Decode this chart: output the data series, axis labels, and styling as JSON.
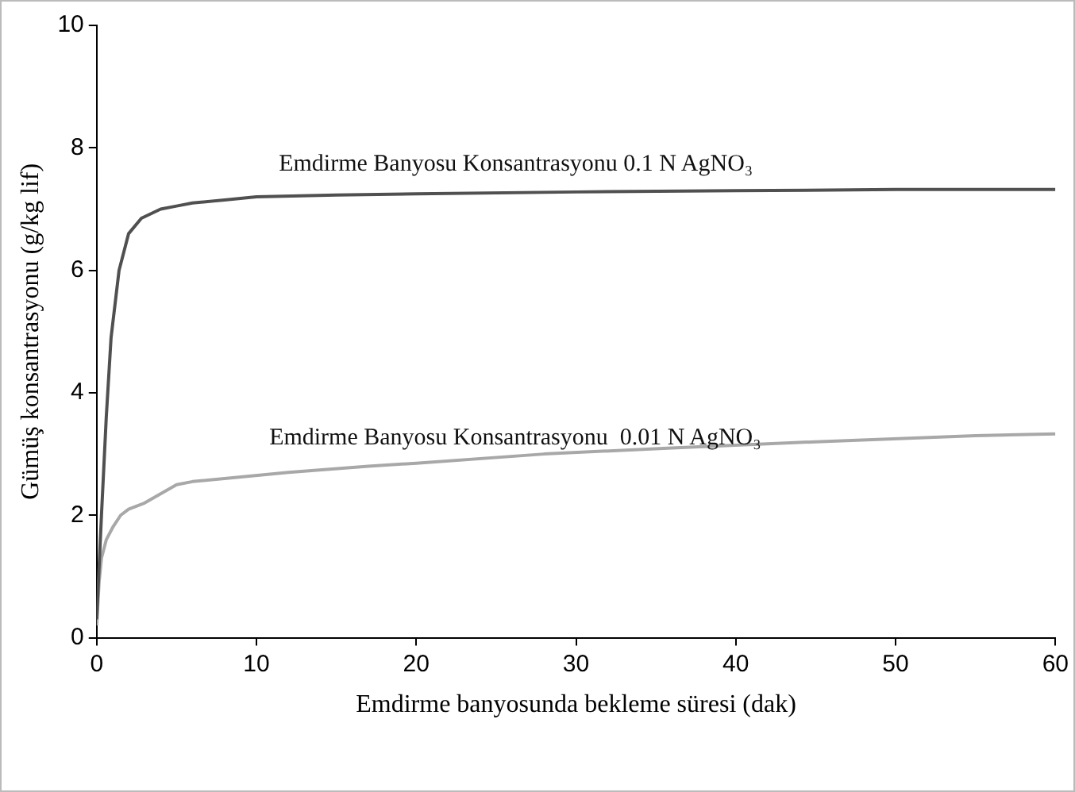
{
  "chart_data": {
    "type": "line",
    "xlabel": "Emdirme banyosunda bekleme süresi (dak)",
    "ylabel": "Gümüş konsantrasyonu (g/kg lif)",
    "xlim": [
      0,
      60
    ],
    "xticks": [
      0,
      10,
      20,
      30,
      40,
      50,
      60
    ],
    "ylim": [
      0,
      10
    ],
    "yticks": [
      0,
      2,
      4,
      6,
      8,
      10
    ],
    "grid": false,
    "legend": false,
    "marker": "none",
    "line_style": "solid",
    "series": [
      {
        "name": "Emdirme Banyosu Konsantrasyonu 0.1 N AgNO₃",
        "color": "#505050",
        "x": [
          0,
          0.3,
          0.6,
          0.9,
          1.4,
          2,
          2.8,
          4,
          5,
          6,
          8,
          10,
          15,
          20,
          30,
          40,
          50,
          60
        ],
        "values": [
          0.3,
          2,
          3.6,
          4.9,
          6,
          6.6,
          6.85,
          7,
          7.05,
          7.1,
          7.15,
          7.2,
          7.23,
          7.25,
          7.28,
          7.3,
          7.32,
          7.32
        ]
      },
      {
        "name": "Emdirme Banyosu Konsantrasyonu  0.01 N AgNO₃",
        "color": "#a8a8a8",
        "x": [
          0,
          0.15,
          0.3,
          0.6,
          1,
          1.5,
          2,
          3,
          4,
          5,
          6,
          8,
          12,
          17,
          20,
          28,
          36,
          45,
          55,
          60
        ],
        "values": [
          0.2,
          0.9,
          1.3,
          1.6,
          1.8,
          2,
          2.1,
          2.2,
          2.35,
          2.5,
          2.55,
          2.6,
          2.7,
          2.8,
          2.85,
          3,
          3.1,
          3.2,
          3.3,
          3.33
        ]
      }
    ]
  }
}
